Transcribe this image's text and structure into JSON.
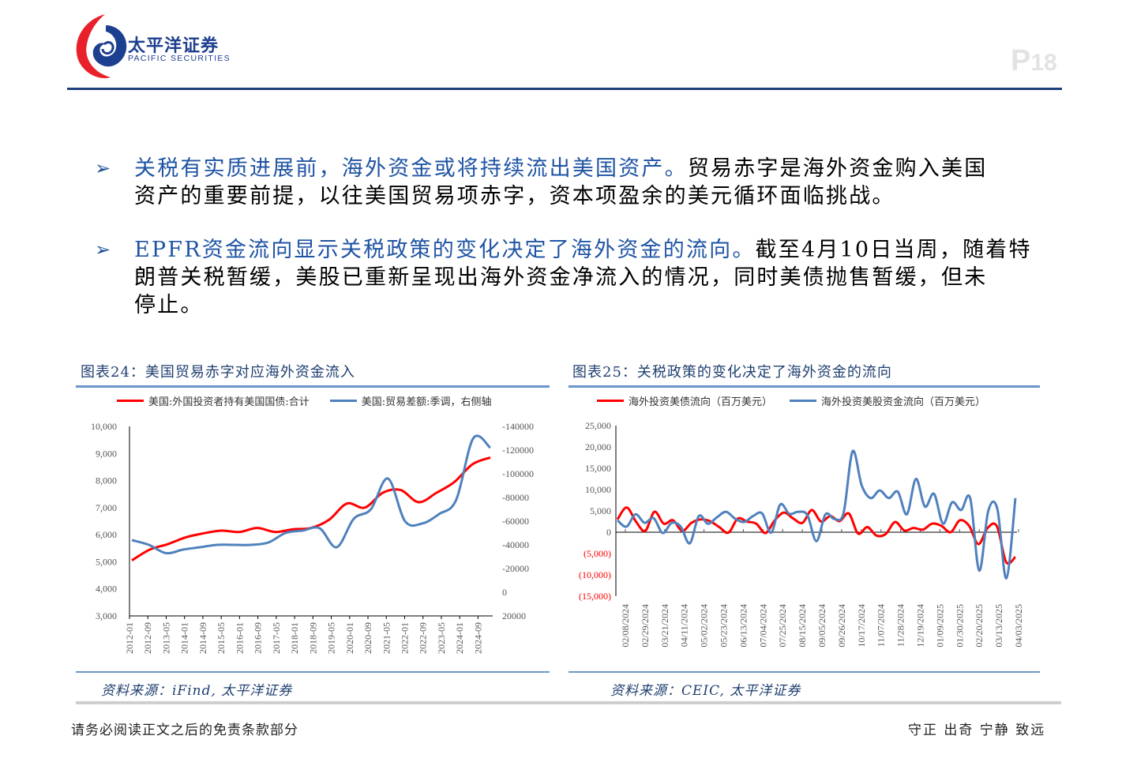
{
  "header": {
    "brand_cn": "太平洋证券",
    "brand_en": "PACIFIC SECURITIES",
    "page_prefix": "P",
    "page_number": "18"
  },
  "bullets": [
    {
      "highlight": "关税有实质进展前，海外资金或将持续流出美国资产。",
      "line1_rest": "贸易赤字是海外资金购入美国",
      "line2": "资产的重要前提，以往美国贸易项赤字，资本项盈余的美元循环面临挑战。"
    },
    {
      "highlight": "EPFR资金流向显示关税政策的变化决定了海外资金的流向。",
      "line1_rest": "截至4月10日当周，随着特",
      "line2": "朗普关税暂缓，美股已重新呈现出海外资金净流入的情况，同时美债抛售暂缓，但未",
      "line3": "停止。"
    }
  ],
  "colors": {
    "red": "#ff0000",
    "blue": "#4f81bd",
    "accent": "#1f54a3",
    "title": "#1f3f70"
  },
  "chart_data": [
    {
      "type": "line",
      "title": "图表24：美国贸易赤字对应海外资金流入",
      "source": "资料来源：iFind, 太平洋证券",
      "legend_position": "top",
      "categories": [
        "2012-01",
        "2012-09",
        "2013-05",
        "2014-01",
        "2014-09",
        "2015-05",
        "2016-01",
        "2016-09",
        "2017-05",
        "2018-01",
        "2018-09",
        "2019-05",
        "2020-01",
        "2020-09",
        "2021-05",
        "2022-01",
        "2022-09",
        "2023-05",
        "2024-01",
        "2024-09"
      ],
      "y_left": {
        "ticks": [
          "10,000",
          "9,000",
          "8,000",
          "7,000",
          "6,000",
          "5,000",
          "4,000",
          "3,000"
        ],
        "range": [
          3000,
          10000
        ]
      },
      "y_right": {
        "ticks": [
          "-140000",
          "-120000",
          "-100000",
          "-80000",
          "-60000",
          "-40000",
          "-20000",
          "0",
          "20000"
        ],
        "range": [
          20000,
          -140000
        ],
        "inverted": true
      },
      "series": [
        {
          "name": "美国:外国投资者持有美国国债:合计",
          "axis": "left",
          "color": "#ff0000",
          "values": [
            5050,
            5450,
            5650,
            5900,
            6050,
            6150,
            6100,
            6250,
            6100,
            6200,
            6250,
            6550,
            7150,
            7000,
            7550,
            7650,
            7200,
            7550,
            7950,
            8600,
            8850
          ]
        },
        {
          "name": "美国:贸易差额:季调，右侧轴",
          "axis": "right",
          "color": "#4f81bd",
          "values": [
            -44000,
            -40000,
            -33000,
            -36000,
            -38000,
            -40000,
            -40000,
            -40000,
            -42000,
            -50000,
            -52000,
            -54000,
            -38000,
            -62000,
            -70000,
            -96000,
            -60000,
            -58000,
            -66000,
            -78000,
            -130000,
            -122000
          ]
        }
      ]
    },
    {
      "type": "line",
      "title": "图表25：关税政策的变化决定了海外资金的流向",
      "source": "资料来源：CEIC, 太平洋证券",
      "legend_position": "top",
      "categories": [
        "02/08/2024",
        "02/29/2024",
        "03/21/2024",
        "04/11/2024",
        "05/02/2024",
        "05/23/2024",
        "06/13/2024",
        "07/04/2024",
        "07/25/2024",
        "08/15/2024",
        "09/05/2024",
        "09/26/2024",
        "10/17/2024",
        "11/07/2024",
        "11/28/2024",
        "12/19/2024",
        "01/09/2025",
        "01/30/2025",
        "02/20/2025",
        "03/13/2025",
        "04/03/2025"
      ],
      "y": {
        "ticks": [
          "25,000",
          "20,000",
          "15,000",
          "10,000",
          "5,000",
          "0",
          "(5,000)",
          "(10,000)",
          "(15,000)"
        ],
        "range": [
          -15000,
          25000
        ],
        "negative_color": "#ff0000"
      },
      "series": [
        {
          "name": "海外投资美债流向（百万美元）",
          "color": "#ff0000",
          "values": [
            3000,
            5800,
            2500,
            300,
            4800,
            2000,
            2800,
            300,
            2200,
            3000,
            2600,
            1200,
            -100,
            3200,
            2500,
            2000,
            -200,
            2800,
            4600,
            3200,
            2200,
            5200,
            2500,
            3800,
            2600,
            4400,
            -300,
            1200,
            -800,
            -400,
            2400,
            400,
            1000,
            600,
            2000,
            1500,
            0,
            2800,
            1500,
            -2800,
            1000,
            1400,
            -7000,
            -5800
          ]
        },
        {
          "name": "海外投资美股资金流向（百万美元）",
          "color": "#4f81bd",
          "values": [
            2800,
            1300,
            4200,
            2200,
            3300,
            -200,
            2200,
            1300,
            -2600,
            3800,
            2000,
            3500,
            4800,
            3200,
            2400,
            3800,
            4400,
            -100,
            6500,
            4300,
            4800,
            4000,
            -2100,
            4200,
            3100,
            4500,
            19000,
            11000,
            8000,
            9800,
            8000,
            9500,
            4200,
            12500,
            6000,
            9000,
            2000,
            7000,
            5200,
            8000,
            -9000,
            5000,
            5500,
            -10800,
            8000
          ]
        }
      ]
    }
  ],
  "footer": {
    "disclaimer": "请务必阅读正文之后的免责条款部分",
    "slogan": "守正 出奇 宁静 致远"
  }
}
